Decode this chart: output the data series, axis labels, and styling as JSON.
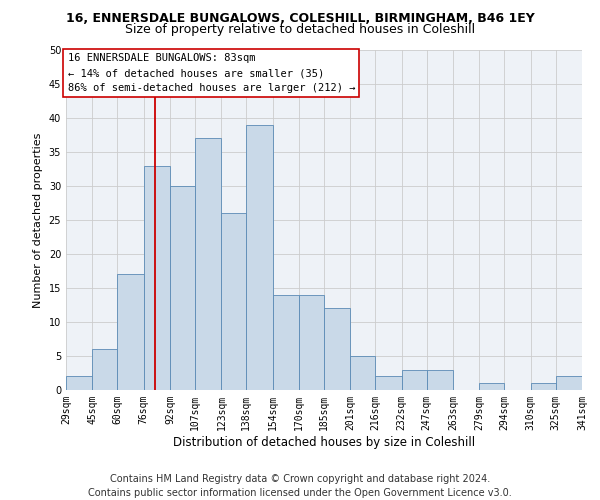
{
  "title": "16, ENNERSDALE BUNGALOWS, COLESHILL, BIRMINGHAM, B46 1EY",
  "subtitle": "Size of property relative to detached houses in Coleshill",
  "xlabel": "Distribution of detached houses by size in Coleshill",
  "ylabel": "Number of detached properties",
  "bin_edges": [
    29,
    45,
    60,
    76,
    92,
    107,
    123,
    138,
    154,
    170,
    185,
    201,
    216,
    232,
    247,
    263,
    279,
    294,
    310,
    325,
    341
  ],
  "bar_heights": [
    2,
    6,
    17,
    33,
    30,
    37,
    26,
    39,
    14,
    14,
    12,
    5,
    2,
    3,
    3,
    0,
    1,
    0,
    1,
    2
  ],
  "bar_color": "#c9d9e8",
  "bar_edgecolor": "#5a8ab5",
  "vline_x": 83,
  "vline_color": "#cc0000",
  "annotation_text": "16 ENNERSDALE BUNGALOWS: 83sqm\n← 14% of detached houses are smaller (35)\n86% of semi-detached houses are larger (212) →",
  "annotation_box_edgecolor": "#cc0000",
  "annotation_box_facecolor": "#ffffff",
  "ylim": [
    0,
    50
  ],
  "yticks": [
    0,
    5,
    10,
    15,
    20,
    25,
    30,
    35,
    40,
    45,
    50
  ],
  "tick_labels": [
    "29sqm",
    "45sqm",
    "60sqm",
    "76sqm",
    "92sqm",
    "107sqm",
    "123sqm",
    "138sqm",
    "154sqm",
    "170sqm",
    "185sqm",
    "201sqm",
    "216sqm",
    "232sqm",
    "247sqm",
    "263sqm",
    "279sqm",
    "294sqm",
    "310sqm",
    "325sqm",
    "341sqm"
  ],
  "footer1": "Contains HM Land Registry data © Crown copyright and database right 2024.",
  "footer2": "Contains public sector information licensed under the Open Government Licence v3.0.",
  "grid_color": "#cccccc",
  "bg_color": "#eef2f7",
  "title_fontsize": 9,
  "subtitle_fontsize": 9,
  "xlabel_fontsize": 8.5,
  "ylabel_fontsize": 8,
  "tick_fontsize": 7,
  "footer_fontsize": 7,
  "annotation_fontsize": 7.5
}
